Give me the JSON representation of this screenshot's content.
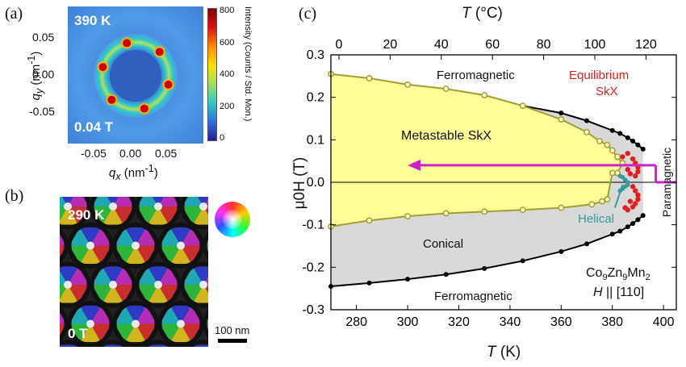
{
  "panels": {
    "a": {
      "letter": "(a)",
      "temperature": "390 K",
      "field": "0.04 T",
      "y_label_main": "q",
      "y_label_sub": "y",
      "y_label_unit": " (nm",
      "y_label_exp": "-1",
      "y_label_close": ")",
      "x_label_main": "q",
      "x_label_sub": "x",
      "x_label_unit": " (nm",
      "x_label_exp": "-1",
      "x_label_close": ")",
      "y_ticks": [
        "0.05",
        "0.00",
        "-0.05"
      ],
      "x_ticks": [
        "-0.05",
        "0.00",
        "0.05"
      ],
      "colorbar_label": "Intensity (Counts / Std. Mon.)",
      "colorbar_ticks": [
        "800",
        "600",
        "400",
        "200",
        "0"
      ],
      "colorbar_colors": [
        "#7f0000",
        "#e01010",
        "#ff8c00",
        "#ffe000",
        "#a0e060",
        "#30c8c8",
        "#3070e0",
        "#202090"
      ]
    },
    "b": {
      "letter": "(b)",
      "temperature": "290 K",
      "field": "0 T",
      "scalebar": "100 nm"
    },
    "c": {
      "letter": "(c)",
      "top_axis_label_var": "T",
      "top_axis_label_unit": " (°C)",
      "bottom_axis_label_var": "T",
      "bottom_axis_label_unit": " (K)",
      "y_axis_label": "μ0H (T)",
      "labels": {
        "ferro_top": "Ferromagnetic",
        "ferro_bottom": "Ferromagnetic",
        "metastable": "Metastable SkX",
        "conical": "Conical",
        "equilibrium_1": "Equilibrium",
        "equilibrium_2": "SkX",
        "helical": "Helical",
        "paramagnetic": "Paramagnetic",
        "compound": "Co9Zn9Mn2",
        "orientation": "H || [110]"
      },
      "colors": {
        "metastable_fill": "#ffff99",
        "gray_fill": "#d9d9d9",
        "olive_line": "#a0a030",
        "equilibrium": "#e02020",
        "helical": "#3a9a9a",
        "arrow": "#cc22cc"
      }
    }
  },
  "chart_data": {
    "type": "scatter",
    "title": "",
    "xlabel": "T (K)",
    "x2label": "T (°C)",
    "ylabel": "μ0H (T)",
    "xlim": [
      270,
      405
    ],
    "x2lim": [
      -3.15,
      131.85
    ],
    "ylim": [
      -0.3,
      0.3
    ],
    "x_ticks": [
      280,
      300,
      320,
      340,
      360,
      380,
      400
    ],
    "x2_ticks": [
      0,
      20,
      40,
      60,
      80,
      100,
      120
    ],
    "y_ticks": [
      -0.3,
      -0.2,
      -0.1,
      0.0,
      0.1,
      0.2,
      0.3
    ],
    "series": [
      {
        "name": "",
        "style": "black-filled",
        "points": [
          [
            270,
            -0.245
          ],
          [
            285,
            -0.237
          ],
          [
            300,
            -0.228
          ],
          [
            315,
            -0.217
          ],
          [
            330,
            -0.203
          ],
          [
            345,
            -0.185
          ],
          [
            360,
            -0.163
          ],
          [
            370,
            -0.145
          ],
          [
            380,
            -0.122
          ],
          [
            383,
            -0.115
          ],
          [
            386,
            -0.105
          ],
          [
            388,
            -0.097
          ],
          [
            390,
            -0.088
          ],
          [
            392,
            -0.078
          ],
          [
            392,
            0.078
          ],
          [
            390,
            0.088
          ],
          [
            388,
            0.097
          ],
          [
            386,
            0.105
          ],
          [
            383,
            0.115
          ],
          [
            380,
            0.122
          ],
          [
            370,
            0.145
          ],
          [
            360,
            0.163
          ],
          [
            345,
            0.18
          ]
        ]
      },
      {
        "name": "",
        "style": "olive-open",
        "points": [
          [
            270,
            0.255
          ],
          [
            285,
            0.245
          ],
          [
            300,
            0.23
          ],
          [
            315,
            0.22
          ],
          [
            330,
            0.205
          ],
          [
            345,
            0.18
          ],
          [
            360,
            0.148
          ],
          [
            370,
            0.118
          ],
          [
            375,
            0.097
          ],
          [
            378,
            0.088
          ],
          [
            380,
            0.075
          ],
          [
            382,
            0.06
          ],
          [
            384,
            0.045
          ],
          [
            382,
            0.022
          ],
          [
            380,
            0.022
          ],
          [
            378,
            -0.04
          ],
          [
            376,
            -0.045
          ],
          [
            372,
            -0.052
          ],
          [
            360,
            -0.06
          ],
          [
            345,
            -0.065
          ],
          [
            330,
            -0.069
          ],
          [
            315,
            -0.073
          ],
          [
            300,
            -0.08
          ],
          [
            285,
            -0.09
          ],
          [
            270,
            -0.104
          ]
        ]
      },
      {
        "name": "Equilibrium SkX",
        "style": "red-filled",
        "points": [
          [
            384,
            0.06
          ],
          [
            386,
            0.068
          ],
          [
            388,
            0.055
          ],
          [
            389,
            0.045
          ],
          [
            390,
            0.035
          ],
          [
            390,
            0.025
          ],
          [
            389,
            0.015
          ],
          [
            387,
            0.02
          ],
          [
            386,
            0.03
          ],
          [
            388,
            -0.01
          ],
          [
            389,
            -0.02
          ],
          [
            390,
            -0.03
          ],
          [
            390,
            -0.04
          ],
          [
            389,
            -0.05
          ],
          [
            388,
            -0.058
          ],
          [
            386,
            -0.065
          ],
          [
            385,
            -0.06
          ],
          [
            387,
            -0.045
          ]
        ]
      },
      {
        "name": "Helical",
        "style": "teal-filled",
        "points": [
          [
            383,
            0.015
          ],
          [
            384,
            0.012
          ],
          [
            385,
            0.006
          ],
          [
            386,
            0.0
          ],
          [
            386,
            -0.006
          ],
          [
            385,
            -0.01
          ],
          [
            384,
            -0.015
          ],
          [
            383,
            -0.02
          ]
        ]
      }
    ],
    "arrow": {
      "from": [
        392,
        0.04
      ],
      "to": [
        300,
        0.04
      ],
      "descend_from": [
        397,
        0.04
      ],
      "descend_to": [
        397,
        0.0
      ]
    },
    "grid": false,
    "legend": "none"
  }
}
